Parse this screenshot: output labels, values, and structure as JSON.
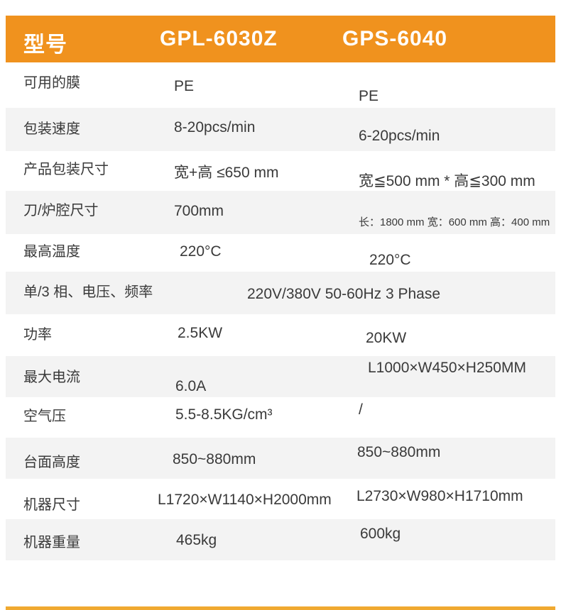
{
  "colors": {
    "header_bg": "#F0921E",
    "row_alt_bg": "#F3F3F3",
    "footer_bar": "#F0A930",
    "header_text": "#FFFFFF",
    "body_text": "#3A3A3A"
  },
  "header": {
    "title": "型号",
    "model1": "GPL-6030Z",
    "model2": "GPS-6040"
  },
  "rows": [
    {
      "label": "可用的膜",
      "col1": "PE",
      "col2": "PE"
    },
    {
      "label": "包装速度",
      "col1": "8-20pcs/min",
      "col2": "6-20pcs/min"
    },
    {
      "label": "产品包装尺寸",
      "col1": "宽+高 ≤650 mm",
      "col2": "宽≦500 mm * 高≦300 mm"
    },
    {
      "label": "刀/炉腔尺寸",
      "col1": "700mm",
      "col2": "长：1800 mm 宽：600 mm 高：400 mm"
    },
    {
      "label": "最高温度",
      "col1": "220°C",
      "col2": "220°C"
    },
    {
      "label": "单/3 相、电压、频率",
      "span": "220V/380V 50-60Hz 3 Phase"
    },
    {
      "label": "功率",
      "col1": "2.5KW",
      "col2": "20KW"
    },
    {
      "label": "最大电流",
      "col1": "6.0A",
      "col2": "L1000×W450×H250MM"
    },
    {
      "label": "空气压",
      "col1": "5.5-8.5KG/cm³",
      "col2": "/"
    },
    {
      "label": "台面高度",
      "col1": "850~880mm",
      "col2": "850~880mm"
    },
    {
      "label": "机器尺寸",
      "col1": "L1720×W1140×H2000mm",
      "col2": "L2730×W980×H1710mm"
    },
    {
      "label": "机器重量",
      "col1": "465kg",
      "col2": "600kg"
    }
  ]
}
